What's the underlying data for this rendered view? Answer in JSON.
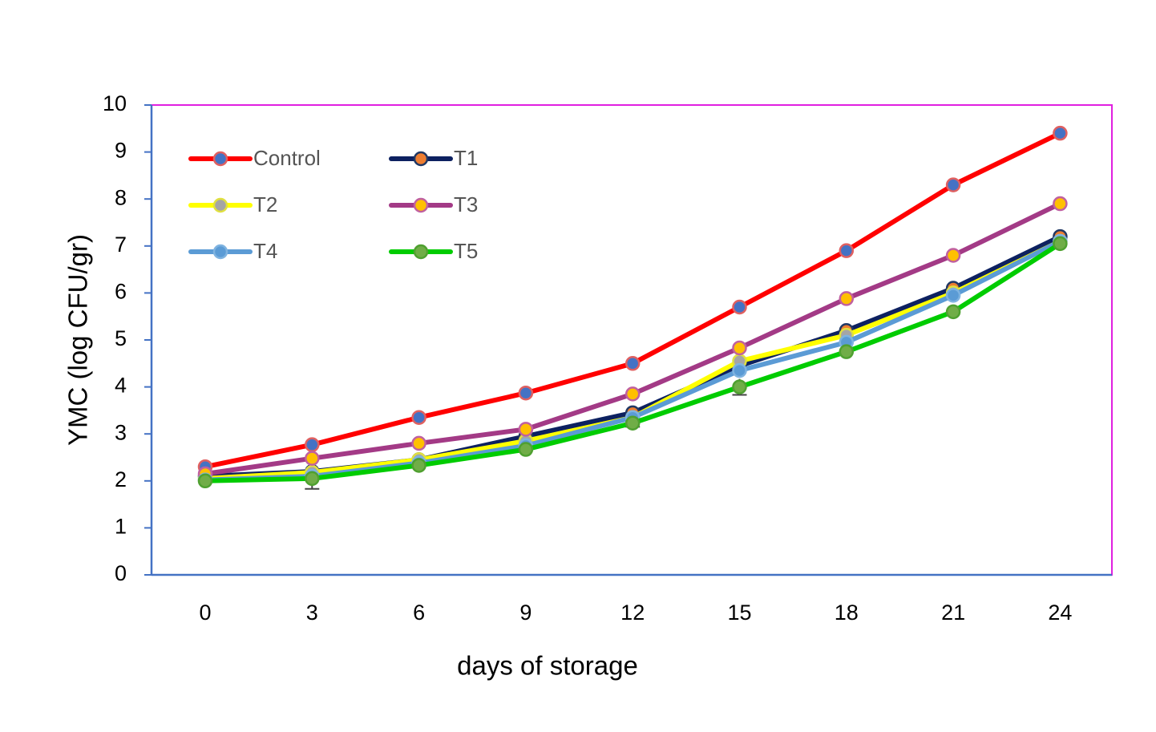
{
  "chart_data": {
    "type": "line",
    "xlabel": "days of storage",
    "ylabel": "YMC (log CFU/gr)",
    "x": [
      0,
      3,
      6,
      9,
      12,
      15,
      18,
      21,
      24
    ],
    "ylim": [
      0,
      10
    ],
    "yticks": [
      0,
      1,
      2,
      3,
      4,
      5,
      6,
      7,
      8,
      9,
      10
    ],
    "grid": false,
    "legend_position": "top-left",
    "plot_border_color": "#E020E0",
    "axis_color": "#4472C4",
    "series": [
      {
        "name": "Control",
        "line_color": "#FF0000",
        "marker_fill": "#4472C4",
        "marker_edge": "#E06060",
        "values": [
          2.3,
          2.77,
          3.35,
          3.87,
          4.5,
          5.7,
          6.9,
          8.3,
          9.4
        ]
      },
      {
        "name": "T1",
        "line_color": "#0D2160",
        "marker_fill": "#ED7D31",
        "marker_edge": "#203864",
        "values": [
          2.1,
          2.2,
          2.45,
          2.95,
          3.45,
          4.45,
          5.2,
          6.1,
          7.2
        ]
      },
      {
        "name": "T2",
        "line_color": "#FFFF00",
        "marker_fill": "#A5A5A5",
        "marker_edge": "#E0E040",
        "values": [
          2.05,
          2.18,
          2.45,
          2.85,
          3.35,
          4.55,
          5.1,
          6.0,
          7.1
        ]
      },
      {
        "name": "T3",
        "line_color": "#A33A86",
        "marker_fill": "#FFC000",
        "marker_edge": "#C060A0",
        "values": [
          2.15,
          2.48,
          2.8,
          3.1,
          3.85,
          4.83,
          5.88,
          6.8,
          7.9
        ]
      },
      {
        "name": "T4",
        "line_color": "#5B9BD5",
        "marker_fill": "#5B9BD5",
        "marker_edge": "#7FB3E0",
        "values": [
          2.02,
          2.1,
          2.38,
          2.75,
          3.35,
          4.35,
          4.95,
          5.95,
          7.1
        ]
      },
      {
        "name": "T5",
        "line_color": "#00CC00",
        "marker_fill": "#70AD47",
        "marker_edge": "#4FA030",
        "values": [
          2.0,
          2.05,
          2.33,
          2.67,
          3.23,
          4.0,
          4.75,
          5.6,
          7.05
        ]
      }
    ]
  }
}
